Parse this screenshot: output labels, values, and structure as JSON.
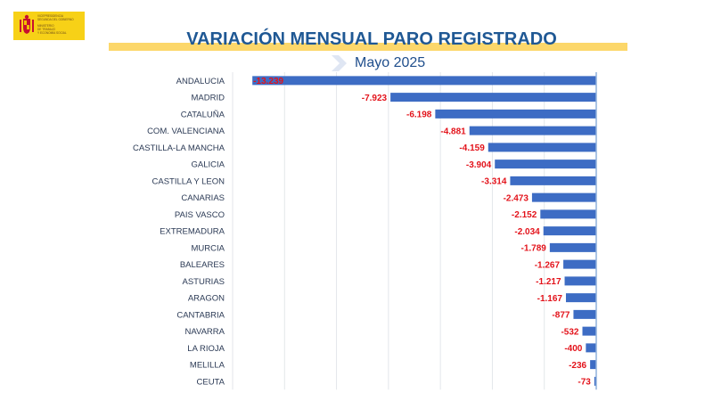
{
  "logo": {
    "lines": [
      "VICEPRESIDENCIA",
      "SEGUNDA DEL GOBIERNO",
      "",
      "MINISTERIO",
      "DE TRABAJO",
      "Y ECONOMÍA SOCIAL"
    ]
  },
  "header": {
    "title": "VARIACIÓN MENSUAL PARO REGISTRADO",
    "subtitle": "Mayo  2025"
  },
  "colors": {
    "bar": "#3d6cc4",
    "label": "#e3131b",
    "category": "#2b3a55",
    "title": "#1f5894",
    "band": "#fcd76a"
  },
  "chart_data": {
    "type": "bar",
    "orientation": "horizontal",
    "title": "VARIACIÓN MENSUAL PARO REGISTRADO",
    "subtitle": "Mayo  2025",
    "categories": [
      "ANDALUCIA",
      "MADRID",
      "CATALUÑA",
      "COM. VALENCIANA",
      "CASTILLA-LA MANCHA",
      "GALICIA",
      "CASTILLA Y LEON",
      "CANARIAS",
      "PAIS VASCO",
      "EXTREMADURA",
      "MURCIA",
      "BALEARES",
      "ASTURIAS",
      "ARAGON",
      "CANTABRIA",
      "NAVARRA",
      "LA RIOJA",
      "MELILLA",
      "CEUTA"
    ],
    "values": [
      -13239,
      -7923,
      -6198,
      -4881,
      -4159,
      -3904,
      -3314,
      -2473,
      -2152,
      -2034,
      -1789,
      -1267,
      -1217,
      -1167,
      -877,
      -532,
      -400,
      -236,
      -73
    ],
    "labels": [
      "-13.239",
      "-7.923",
      "-6.198",
      "-4.881",
      "-4.159",
      "-3.904",
      "-3.314",
      "-2.473",
      "-2.152",
      "-2.034",
      "-1.789",
      "-1.267",
      "-1.217",
      "-1.167",
      "-877",
      "-532",
      "-400",
      "-236",
      "-73"
    ],
    "xlim": [
      -14000,
      0
    ],
    "grid_step": 2000,
    "grid": true,
    "legend": "none"
  }
}
